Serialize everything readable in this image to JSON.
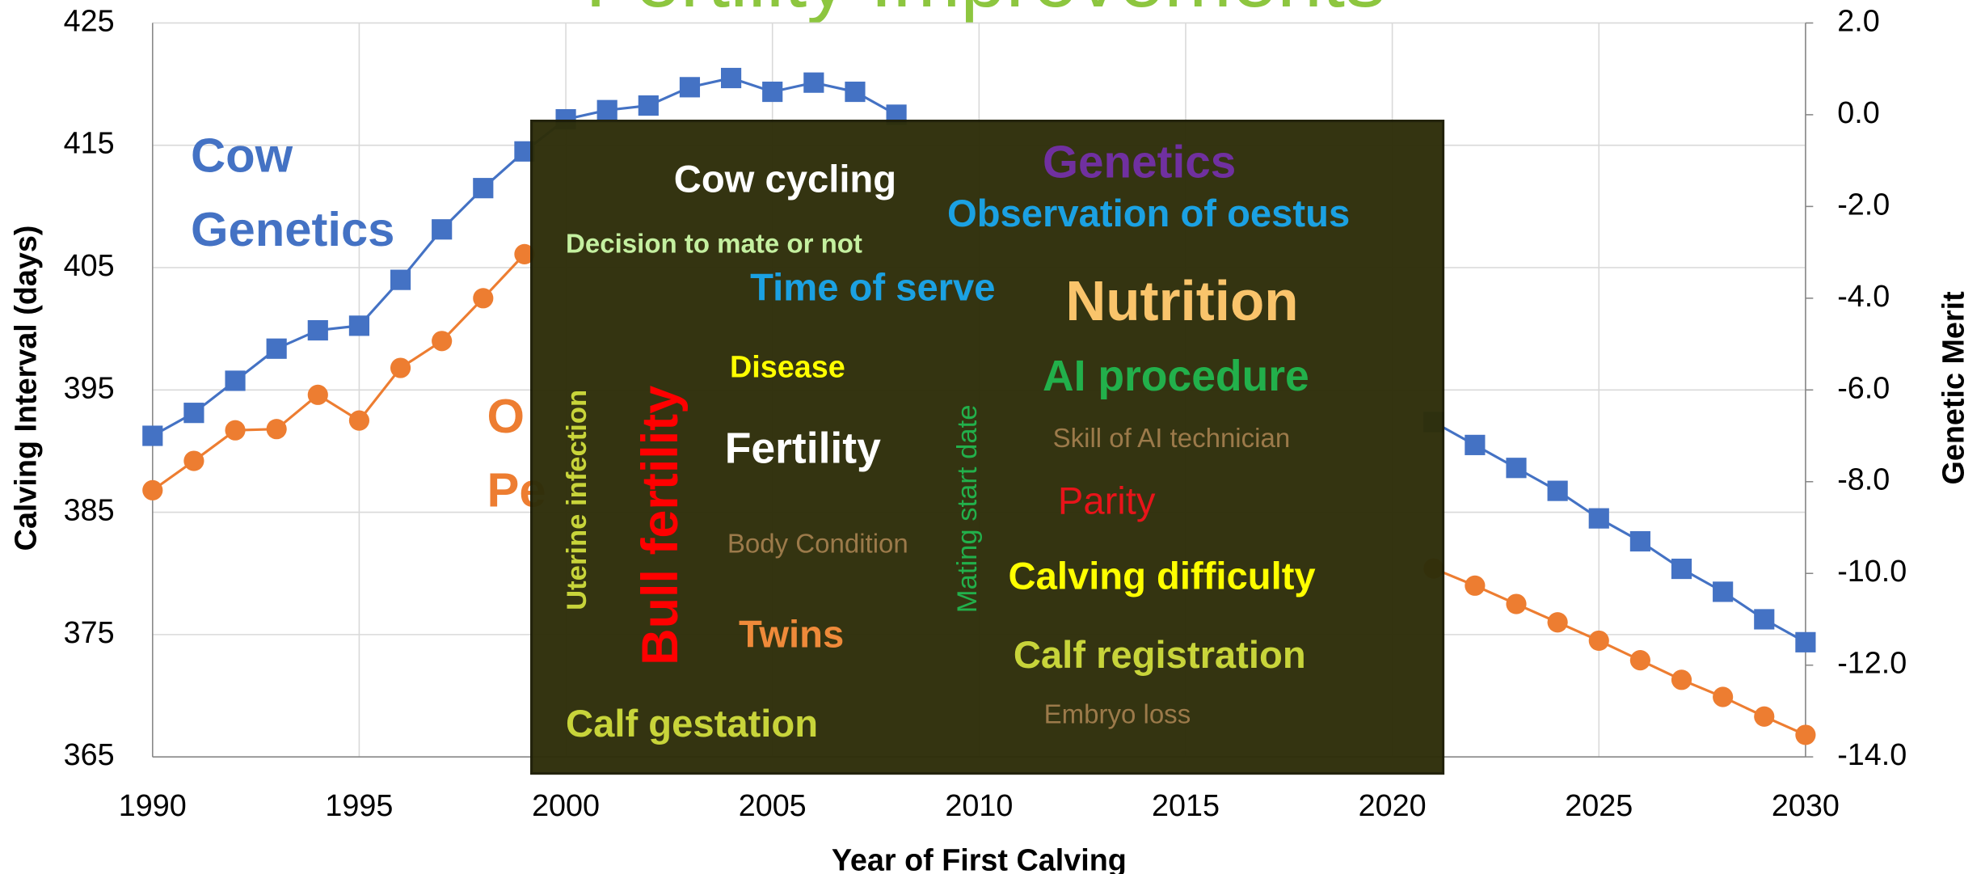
{
  "chart_data": {
    "type": "line",
    "title": "Fertility Improvements",
    "x_label": "Year of First Calving",
    "y_label": "Calving Interval (days)",
    "y2_label": "Genetic Merit",
    "x": [
      1990,
      1991,
      1992,
      1993,
      1994,
      1995,
      1996,
      1997,
      1998,
      1999,
      2000,
      2001,
      2002,
      2003,
      2004,
      2005,
      2006,
      2007,
      2008,
      2009,
      2010,
      2011,
      2012,
      2013,
      2014,
      2015,
      2016,
      2017,
      2018,
      2019,
      2020,
      2021,
      2022,
      2023,
      2024,
      2025,
      2026,
      2027,
      2028,
      2029,
      2030
    ],
    "xlim": [
      1990,
      2030
    ],
    "xticks": [
      1990,
      1995,
      2000,
      2005,
      2010,
      2015,
      2020,
      2025,
      2030
    ],
    "ylim": [
      365,
      425
    ],
    "yticks": [
      365,
      375,
      385,
      395,
      405,
      415,
      425
    ],
    "y2lim": [
      -14,
      2
    ],
    "y2ticks": [
      {
        "value": -14,
        "label": "-14.0"
      },
      {
        "value": -12,
        "label": "-12.0"
      },
      {
        "value": -10,
        "label": "-10.0"
      },
      {
        "value": -8,
        "label": "-8.0"
      },
      {
        "value": -6,
        "label": "-6.0"
      },
      {
        "value": -4,
        "label": "-4.0"
      },
      {
        "value": -2,
        "label": "-2.0"
      },
      {
        "value": 0,
        "label": "0.0"
      },
      {
        "value": 2,
        "label": "2.0"
      }
    ],
    "grid": true,
    "series": [
      {
        "color": "#4472c4",
        "marker": "square",
        "axis": "y2",
        "values": [
          -7.0,
          -6.5,
          -5.8,
          -5.1,
          -4.7,
          -4.6,
          -3.6,
          -2.5,
          -1.6,
          -0.8,
          -0.1,
          0.1,
          0.2,
          0.6,
          0.8,
          0.5,
          0.7,
          0.5,
          0.0,
          null,
          null,
          null,
          null,
          null,
          null,
          null,
          null,
          null,
          null,
          null,
          null,
          -6.7,
          -7.2,
          -7.7,
          -8.2,
          -8.8,
          -9.3,
          -9.9,
          -10.4,
          -11.0,
          -11.5
        ]
      },
      {
        "color": "#ed7d31",
        "marker": "circle",
        "axis": "y",
        "values": [
          386.8,
          389.2,
          391.7,
          391.8,
          394.6,
          392.5,
          396.8,
          399.0,
          402.5,
          406.1,
          null,
          null,
          null,
          null,
          null,
          null,
          null,
          null,
          null,
          null,
          null,
          null,
          null,
          null,
          null,
          null,
          null,
          null,
          null,
          null,
          null,
          380.4,
          379.0,
          377.5,
          376.0,
          374.5,
          372.9,
          371.3,
          369.9,
          368.3,
          366.8
        ]
      }
    ],
    "annotations": [
      {
        "text": "Cow",
        "color": "#4472c4"
      },
      {
        "text": "Genetics",
        "color": "#4472c4"
      },
      {
        "text": "O",
        "color": "#ed7d31"
      },
      {
        "text": "Pe",
        "color": "#ed7d31"
      }
    ],
    "word_cloud": [
      {
        "text": "Cow cycling",
        "color": "#ffffff"
      },
      {
        "text": "Genetics",
        "color": "#7030a0"
      },
      {
        "text": "Observation of oestus",
        "color": "#1ba1e2"
      },
      {
        "text": "Decision to mate or not",
        "color": "#c4f0a0"
      },
      {
        "text": "Time of serve",
        "color": "#1ba1e2"
      },
      {
        "text": "Nutrition",
        "color": "#f9c46b"
      },
      {
        "text": "Disease",
        "color": "#ffff00"
      },
      {
        "text": "AI procedure",
        "color": "#22b04b"
      },
      {
        "text": "Skill of AI technician",
        "color": "#9c7a4a"
      },
      {
        "text": "Fertility",
        "color": "#ffffff"
      },
      {
        "text": "Parity",
        "color": "#e8141a"
      },
      {
        "text": "Body Condition",
        "color": "#9c7a4a"
      },
      {
        "text": "Calving difficulty",
        "color": "#ffff00"
      },
      {
        "text": "Twins",
        "color": "#ef8a3a"
      },
      {
        "text": "Calf registration",
        "color": "#c8d43a"
      },
      {
        "text": "Embryo loss",
        "color": "#9c7a4a"
      },
      {
        "text": "Calf gestation",
        "color": "#c8d43a"
      },
      {
        "text": "Uterine infection",
        "color": "#c8d43a"
      },
      {
        "text": "Bull fertility",
        "color": "#ff0000"
      },
      {
        "text": "Mating start date",
        "color": "#22b04b"
      }
    ]
  }
}
